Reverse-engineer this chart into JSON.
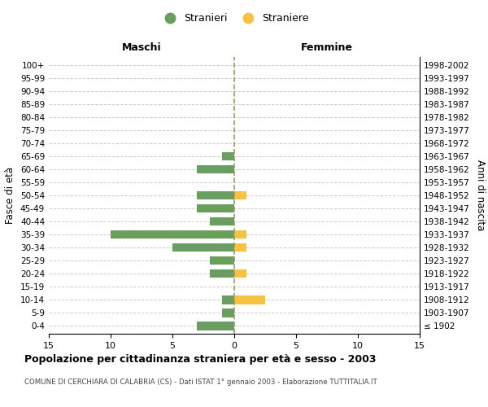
{
  "age_groups": [
    "100+",
    "95-99",
    "90-94",
    "85-89",
    "80-84",
    "75-79",
    "70-74",
    "65-69",
    "60-64",
    "55-59",
    "50-54",
    "45-49",
    "40-44",
    "35-39",
    "30-34",
    "25-29",
    "20-24",
    "15-19",
    "10-14",
    "5-9",
    "0-4"
  ],
  "birth_years": [
    "≤ 1902",
    "1903-1907",
    "1908-1912",
    "1913-1917",
    "1918-1922",
    "1923-1927",
    "1928-1932",
    "1933-1937",
    "1938-1942",
    "1943-1947",
    "1948-1952",
    "1953-1957",
    "1958-1962",
    "1963-1967",
    "1968-1972",
    "1973-1977",
    "1978-1982",
    "1983-1987",
    "1988-1992",
    "1993-1997",
    "1998-2002"
  ],
  "maschi": [
    0,
    0,
    0,
    0,
    0,
    0,
    0,
    1,
    3,
    0,
    3,
    3,
    2,
    10,
    5,
    2,
    2,
    0,
    1,
    1,
    3
  ],
  "femmine": [
    0,
    0,
    0,
    0,
    0,
    0,
    0,
    0,
    0,
    0,
    1,
    0,
    0,
    1,
    1,
    0,
    1,
    0,
    2.5,
    0,
    0
  ],
  "color_maschi": "#6a9e5e",
  "color_femmine": "#f5c242",
  "title": "Popolazione per cittadinanza straniera per età e sesso - 2003",
  "subtitle": "COMUNE DI CERCHIARA DI CALABRIA (CS) - Dati ISTAT 1° gennaio 2003 - Elaborazione TUTTITALIA.IT",
  "xlabel_left": "Maschi",
  "xlabel_right": "Femmine",
  "ylabel_left": "Fasce di età",
  "ylabel_right": "Anni di nascita",
  "xlim": 15,
  "legend_stranieri": "Stranieri",
  "legend_straniere": "Straniere",
  "background_color": "#ffffff",
  "grid_color": "#cccccc"
}
